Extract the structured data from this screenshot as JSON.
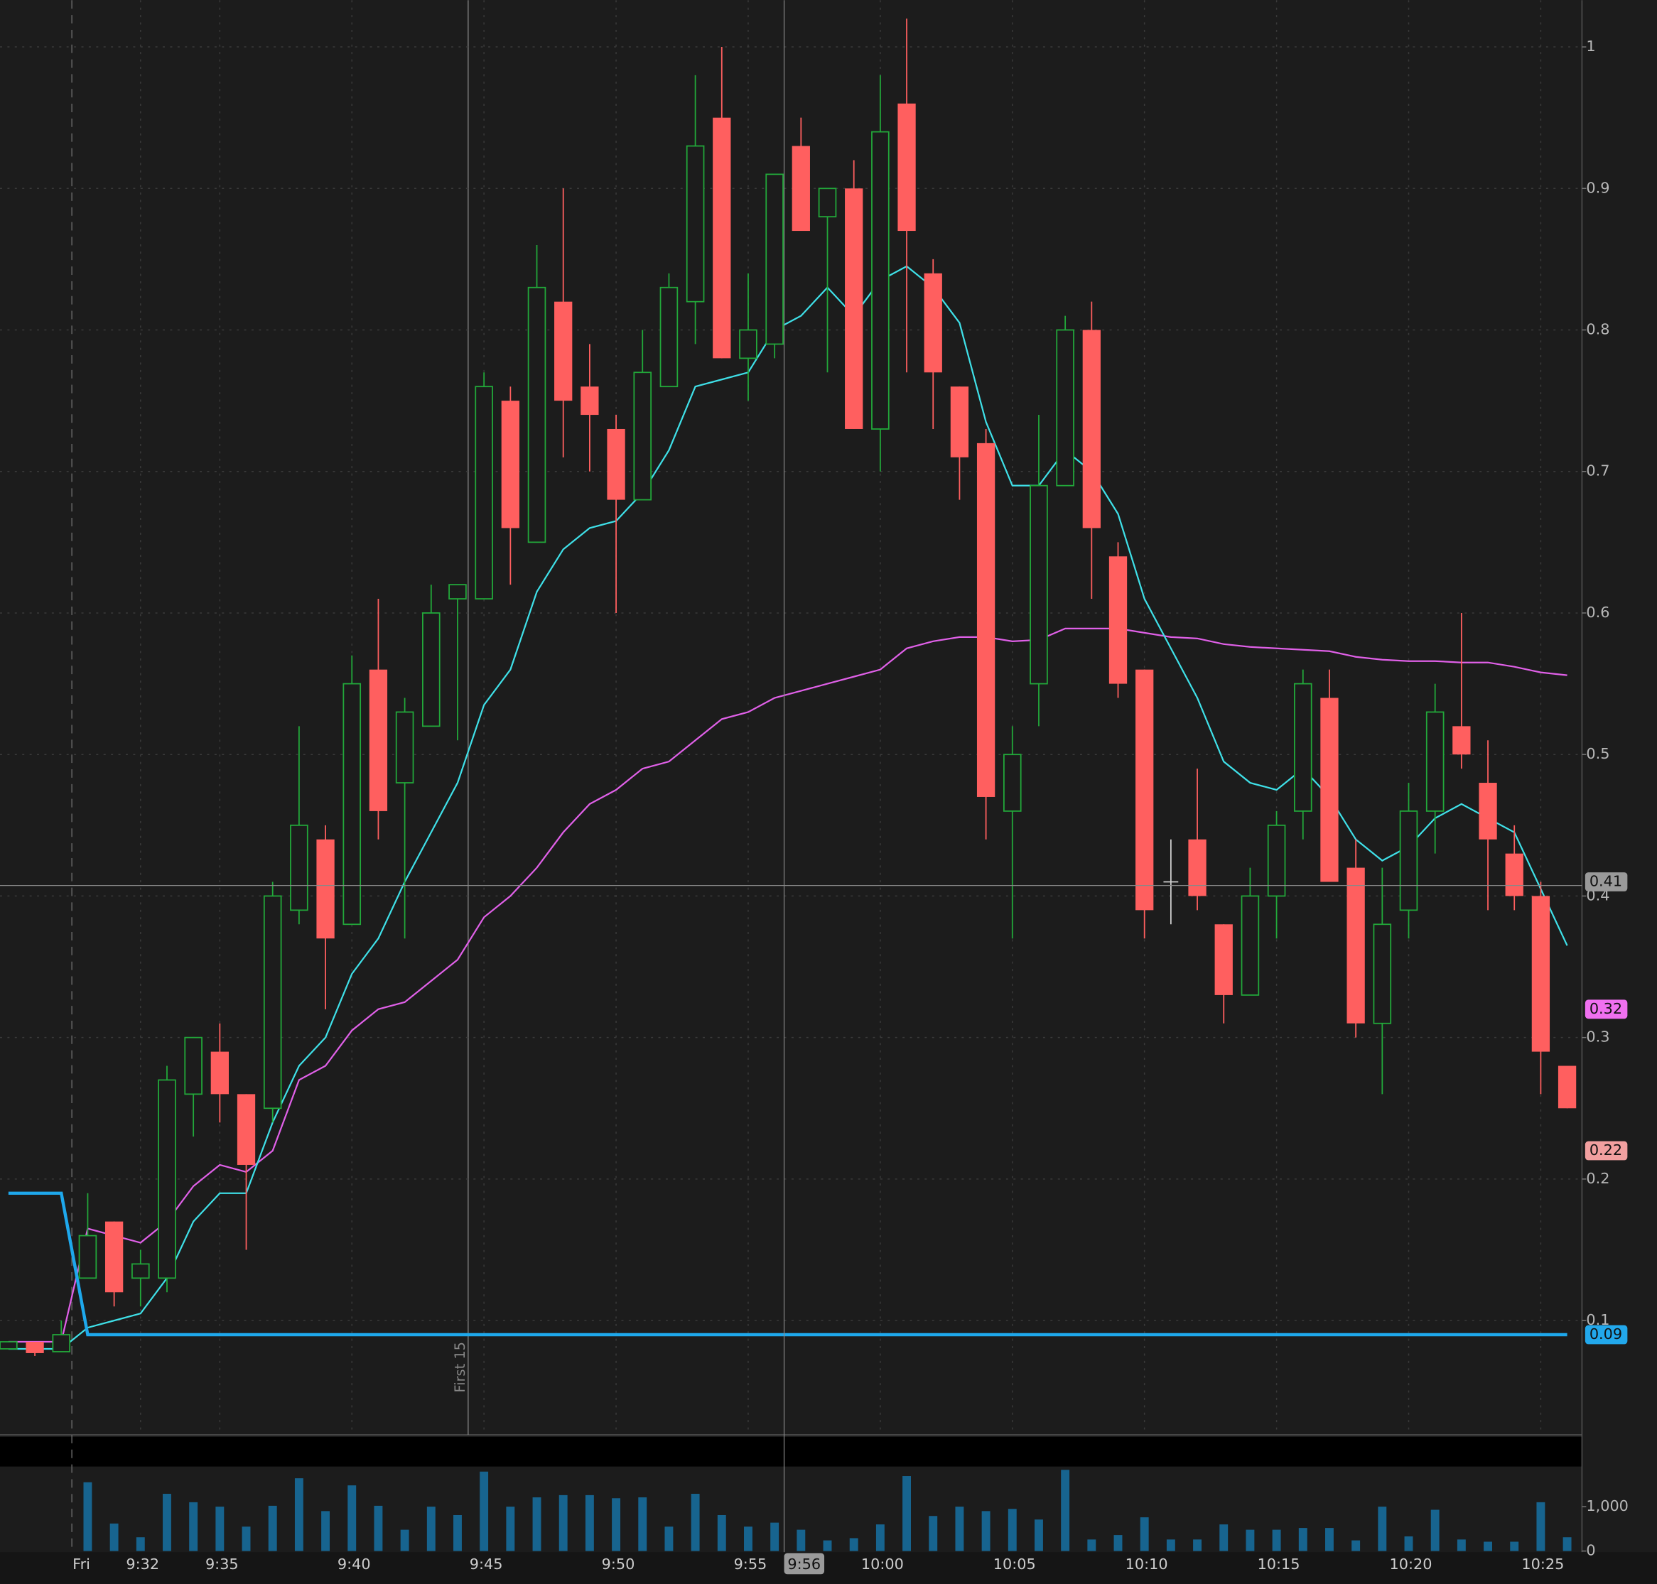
{
  "chart_data": {
    "type": "candlestick",
    "categories": [
      null,
      null,
      null,
      "Fri",
      null,
      "9:32",
      null,
      null,
      "9:35",
      null,
      null,
      null,
      null,
      "9:40",
      null,
      null,
      null,
      null,
      "9:45",
      null,
      null,
      null,
      null,
      "9:50",
      null,
      null,
      null,
      null,
      "9:55",
      null,
      null,
      null,
      null,
      "10:00",
      null,
      null,
      null,
      null,
      "10:05",
      null,
      null,
      null,
      null,
      "10:10",
      null,
      null,
      null,
      null,
      "10:15",
      null,
      null,
      null,
      null,
      "10:20",
      null,
      null,
      null,
      null,
      "10:25",
      null
    ],
    "open": [
      0.08,
      0.085,
      0.078,
      0.13,
      0.17,
      0.13,
      0.13,
      0.26,
      0.29,
      0.26,
      0.25,
      0.39,
      0.44,
      0.38,
      0.56,
      0.48,
      0.52,
      0.61,
      0.61,
      0.75,
      0.65,
      0.82,
      0.76,
      0.73,
      0.68,
      0.76,
      0.82,
      0.95,
      0.78,
      0.79,
      0.93,
      0.88,
      0.9,
      0.73,
      0.96,
      0.84,
      0.76,
      0.72,
      0.46,
      0.55,
      0.69,
      0.8,
      0.64,
      0.56,
      0.41,
      0.44,
      0.38,
      0.33,
      0.4,
      0.46,
      0.54,
      0.42,
      0.31,
      0.39,
      0.46,
      0.52,
      0.48,
      0.43,
      0.4,
      0.28
    ],
    "high": [
      0.085,
      0.085,
      0.1,
      0.19,
      0.17,
      0.15,
      0.28,
      0.3,
      0.31,
      0.26,
      0.41,
      0.52,
      0.45,
      0.57,
      0.61,
      0.54,
      0.62,
      0.62,
      0.77,
      0.76,
      0.86,
      0.9,
      0.79,
      0.74,
      0.8,
      0.84,
      0.98,
      1.0,
      0.84,
      0.91,
      0.95,
      0.9,
      0.92,
      0.98,
      1.02,
      0.85,
      0.76,
      0.73,
      0.52,
      0.74,
      0.81,
      0.82,
      0.65,
      0.56,
      0.44,
      0.49,
      0.38,
      0.42,
      0.46,
      0.56,
      0.56,
      0.44,
      0.42,
      0.48,
      0.55,
      0.6,
      0.51,
      0.45,
      0.41,
      0.28
    ],
    "low": [
      0.08,
      0.075,
      0.078,
      0.13,
      0.11,
      0.11,
      0.12,
      0.23,
      0.24,
      0.15,
      0.24,
      0.38,
      0.32,
      0.38,
      0.44,
      0.37,
      0.52,
      0.51,
      0.61,
      0.62,
      0.65,
      0.71,
      0.7,
      0.6,
      0.68,
      0.76,
      0.79,
      0.78,
      0.75,
      0.78,
      0.87,
      0.77,
      0.73,
      0.7,
      0.77,
      0.73,
      0.68,
      0.44,
      0.37,
      0.52,
      0.69,
      0.61,
      0.54,
      0.37,
      0.38,
      0.39,
      0.31,
      0.33,
      0.37,
      0.44,
      0.41,
      0.3,
      0.26,
      0.37,
      0.43,
      0.49,
      0.39,
      0.39,
      0.26,
      0.25
    ],
    "close": [
      0.085,
      0.077,
      0.09,
      0.16,
      0.12,
      0.14,
      0.27,
      0.3,
      0.26,
      0.21,
      0.4,
      0.45,
      0.37,
      0.55,
      0.46,
      0.53,
      0.6,
      0.62,
      0.76,
      0.66,
      0.83,
      0.75,
      0.74,
      0.68,
      0.77,
      0.83,
      0.93,
      0.78,
      0.8,
      0.91,
      0.87,
      0.9,
      0.73,
      0.94,
      0.87,
      0.77,
      0.71,
      0.47,
      0.5,
      0.69,
      0.8,
      0.66,
      0.55,
      0.39,
      0.41,
      0.4,
      0.33,
      0.4,
      0.45,
      0.55,
      0.41,
      0.31,
      0.38,
      0.46,
      0.53,
      0.5,
      0.44,
      0.4,
      0.29,
      0.25
    ],
    "up_color": "#22a83a",
    "down_color": "#ff5f5f",
    "flat_color": "#cfcfcf",
    "ylim": [
      0.02,
      1.033
    ],
    "yticks": [
      0.1,
      0.2,
      0.3,
      0.4,
      0.5,
      0.6,
      0.7,
      0.8,
      0.9,
      1
    ],
    "grid": true,
    "overlays": [
      {
        "color": "#e060e8",
        "width": 1.5,
        "values": [
          0.085,
          0.085,
          0.085,
          0.165,
          0.16,
          0.155,
          0.17,
          0.195,
          0.21,
          0.205,
          0.22,
          0.27,
          0.28,
          0.305,
          0.32,
          0.325,
          0.34,
          0.355,
          0.385,
          0.4,
          0.42,
          0.445,
          0.465,
          0.475,
          0.49,
          0.495,
          0.51,
          0.525,
          0.53,
          0.54,
          0.545,
          0.55,
          0.555,
          0.56,
          0.575,
          0.58,
          0.583,
          0.583,
          0.58,
          0.581,
          0.589,
          0.589,
          0.589,
          0.586,
          0.583,
          0.582,
          0.578,
          0.576,
          0.575,
          0.574,
          0.573,
          0.569,
          0.567,
          0.566,
          0.566,
          0.565,
          0.565,
          0.562,
          0.558,
          0.556
        ]
      },
      {
        "color": "#3fe0e8",
        "width": 1.5,
        "values": [
          0.08,
          0.08,
          0.08,
          0.095,
          0.1,
          0.105,
          0.13,
          0.17,
          0.19,
          0.19,
          0.24,
          0.28,
          0.3,
          0.345,
          0.37,
          0.41,
          0.445,
          0.48,
          0.535,
          0.56,
          0.615,
          0.645,
          0.66,
          0.665,
          0.685,
          0.715,
          0.76,
          0.765,
          0.77,
          0.8,
          0.81,
          0.83,
          0.81,
          0.835,
          0.845,
          0.83,
          0.805,
          0.735,
          0.69,
          0.69,
          0.715,
          0.7,
          0.67,
          0.61,
          0.575,
          0.54,
          0.495,
          0.48,
          0.475,
          0.49,
          0.47,
          0.44,
          0.425,
          0.435,
          0.455,
          0.465,
          0.455,
          0.445,
          0.405,
          0.365
        ]
      },
      {
        "color": "#1ea8ec",
        "width": 3,
        "values": [
          0.19,
          0.19,
          0.19,
          0.09,
          0.09,
          0.09,
          0.09,
          0.09,
          0.09,
          0.09,
          0.09,
          0.09,
          0.09,
          0.09,
          0.09,
          0.09,
          0.09,
          0.09,
          0.09,
          0.09,
          0.09,
          0.09,
          0.09,
          0.09,
          0.09,
          0.09,
          0.09,
          0.09,
          0.09,
          0.09,
          0.09,
          0.09,
          0.09,
          0.09,
          0.09,
          0.09,
          0.09,
          0.09,
          0.09,
          0.09,
          0.09,
          0.09,
          0.09,
          0.09,
          0.09,
          0.09,
          0.09,
          0.09,
          0.09,
          0.09,
          0.09,
          0.09,
          0.09,
          0.09,
          0.09,
          0.09,
          0.09,
          0.09,
          0.09,
          0.09
        ]
      }
    ],
    "price_labels": [
      {
        "value": 0.41,
        "color": "#9a9a9a"
      },
      {
        "value": 0.32,
        "color": "#f070f0"
      },
      {
        "value": 0.22,
        "color": "#f2a0a0"
      },
      {
        "value": 0.09,
        "color": "#22a8ec"
      }
    ],
    "annotation": "First 15",
    "cursor_time": "9:56",
    "volume": {
      "color": "#17648f",
      "values": [
        null,
        null,
        null,
        1550,
        620,
        310,
        1290,
        1100,
        1000,
        550,
        1020,
        1640,
        900,
        1480,
        1020,
        480,
        1000,
        810,
        1790,
        1000,
        1210,
        1260,
        1260,
        1190,
        1210,
        550,
        1290,
        810,
        550,
        640,
        480,
        240,
        290,
        600,
        1690,
        790,
        1000,
        900,
        950,
        710,
        1830,
        260,
        360,
        760,
        260,
        260,
        600,
        480,
        480,
        520,
        520,
        240,
        1000,
        330,
        930,
        260,
        210,
        210,
        1100,
        310
      ],
      "ylim": [
        0,
        2500
      ],
      "yticks": [
        0,
        {
          "value": 1000,
          "label": "1,000"
        }
      ]
    }
  }
}
